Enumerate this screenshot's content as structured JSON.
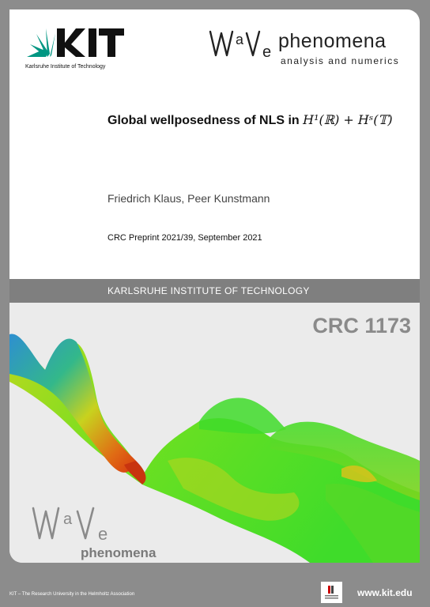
{
  "header": {
    "kit_logo_text": "KIT",
    "kit_subtitle": "Karlsruhe Institute of Technology",
    "wave_logo_text": "Wave",
    "wave_title": "phenomena",
    "wave_subtitle": "analysis and numerics"
  },
  "document": {
    "title_text": "Global wellposedness of NLS in",
    "title_math": "H¹(ℝ) + Hˢ(𝕋)",
    "authors": "Friedrich Klaus, Peer Kunstmann",
    "preprint": "CRC Preprint 2021/39, September 2021"
  },
  "band": {
    "label": "KARLSRUHE INSTITUTE OF TECHNOLOGY"
  },
  "graphic": {
    "crc_label": "CRC 1173",
    "logo_text": "Wave",
    "logo_word": "phenomena"
  },
  "footer": {
    "text": "KIT – The Research University in the Helmholtz Association",
    "url": "www.kit.edu"
  },
  "colors": {
    "kit_green": "#009682",
    "band_gray": "#7f7f7f",
    "page_gray": "#8c8c8c"
  }
}
